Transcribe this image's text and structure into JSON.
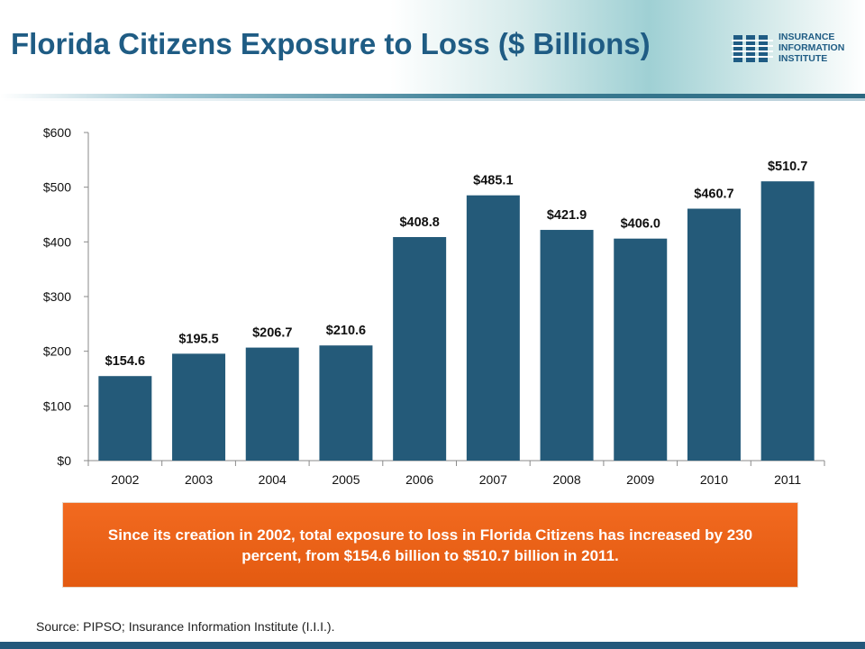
{
  "slide": {
    "title": "Florida Citizens Exposure to Loss ($ Billions)",
    "logo": [
      "INSURANCE",
      "INFORMATION",
      "INSTITUTE"
    ],
    "callout": "Since its creation in 2002, total exposure to loss in Florida Citizens has increased by 230 percent, from $154.6 billion to $510.7 billion in 2011.",
    "source": "Source: PIPSO; Insurance Information Institute (I.I.I.)."
  },
  "colors": {
    "title": "#1f5c84",
    "bar": "#245a79",
    "callout": "#ee6418",
    "footer": "#23587b"
  },
  "chart_data": {
    "type": "bar",
    "title": "",
    "xlabel": "",
    "ylabel": "",
    "categories": [
      "2002",
      "2003",
      "2004",
      "2005",
      "2006",
      "2007",
      "2008",
      "2009",
      "2010",
      "2011"
    ],
    "values": [
      154.6,
      195.5,
      206.7,
      210.6,
      408.8,
      485.1,
      421.9,
      406.0,
      460.7,
      510.7
    ],
    "data_labels": [
      "$154.6",
      "$195.5",
      "$206.7",
      "$210.6",
      "$408.8",
      "$485.1",
      "$421.9",
      "$406.0",
      "$460.7",
      "$510.7"
    ],
    "ylim": [
      0,
      600
    ],
    "yticks": [
      0,
      100,
      200,
      300,
      400,
      500,
      600
    ],
    "ytick_labels": [
      "$0",
      "$100",
      "$200",
      "$300",
      "$400",
      "$500",
      "$600"
    ],
    "grid": false,
    "legend": "none"
  }
}
